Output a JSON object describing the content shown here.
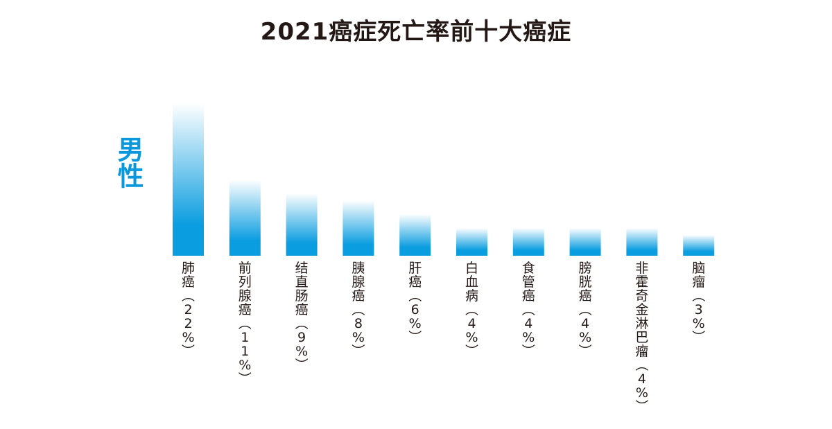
{
  "title": "2021癌症死亡率前十大癌症",
  "gender": "男性",
  "chart_data": {
    "type": "bar",
    "categories": [
      "肺癌",
      "前列腺癌",
      "结直肠癌",
      "胰腺癌",
      "肝癌",
      "白血病",
      "食管癌",
      "膀胱癌",
      "非霍奇金淋巴瘤",
      "脑瘤"
    ],
    "values": [
      22,
      11,
      9,
      8,
      6,
      4,
      4,
      4,
      4,
      3
    ],
    "unit": "%",
    "tick_labels": [
      "肺癌（22%）",
      "前列腺癌（11%）",
      "结直肠癌（9%）",
      "胰腺癌（8%）",
      "肝癌（6%）",
      "白血病（4%）",
      "食管癌（4%）",
      "膀胱癌（4%）",
      "非霍奇金淋巴瘤（4%）",
      "脑瘤（3%）"
    ],
    "ylim": [
      0,
      22
    ],
    "grid": false,
    "bar_color": "#0a9de0",
    "bar_fade_color": "#ffffff"
  }
}
